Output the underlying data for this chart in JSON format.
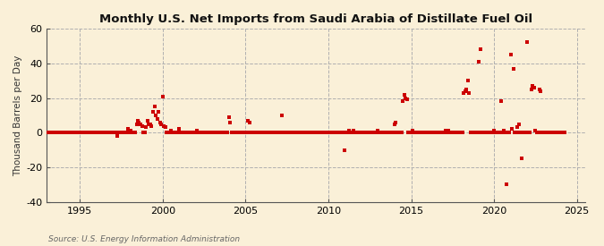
{
  "title": "Monthly U.S. Net Imports from Saudi Arabia of Distillate Fuel Oil",
  "ylabel": "Thousand Barrels per Day",
  "source_text": "Source: U.S. Energy Information Administration",
  "background_color": "#faf0d8",
  "plot_bg_color": "#faf0d8",
  "marker_color": "#cc0000",
  "marker_size": 5,
  "xlim": [
    1993.0,
    2025.5
  ],
  "ylim": [
    -40,
    60
  ],
  "yticks": [
    -40,
    -20,
    0,
    20,
    40,
    60
  ],
  "xticks": [
    1995,
    2000,
    2005,
    2010,
    2015,
    2020,
    2025
  ],
  "data": [
    [
      1993.0,
      0
    ],
    [
      1993.08,
      0
    ],
    [
      1993.17,
      0
    ],
    [
      1993.25,
      0
    ],
    [
      1993.33,
      0
    ],
    [
      1993.42,
      0
    ],
    [
      1993.5,
      0
    ],
    [
      1993.58,
      0
    ],
    [
      1993.67,
      0
    ],
    [
      1993.75,
      0
    ],
    [
      1993.83,
      0
    ],
    [
      1993.92,
      0
    ],
    [
      1994.0,
      0
    ],
    [
      1994.08,
      0
    ],
    [
      1994.17,
      0
    ],
    [
      1994.25,
      0
    ],
    [
      1994.33,
      0
    ],
    [
      1994.42,
      0
    ],
    [
      1994.5,
      0
    ],
    [
      1994.58,
      0
    ],
    [
      1994.67,
      0
    ],
    [
      1994.75,
      0
    ],
    [
      1994.83,
      0
    ],
    [
      1994.92,
      0
    ],
    [
      1995.0,
      0
    ],
    [
      1995.08,
      0
    ],
    [
      1995.17,
      0
    ],
    [
      1995.25,
      0
    ],
    [
      1995.33,
      0
    ],
    [
      1995.42,
      0
    ],
    [
      1995.5,
      0
    ],
    [
      1995.58,
      0
    ],
    [
      1995.67,
      0
    ],
    [
      1995.75,
      0
    ],
    [
      1995.83,
      0
    ],
    [
      1995.92,
      0
    ],
    [
      1996.0,
      0
    ],
    [
      1996.08,
      0
    ],
    [
      1996.17,
      0
    ],
    [
      1996.25,
      0
    ],
    [
      1996.33,
      0
    ],
    [
      1996.42,
      0
    ],
    [
      1996.5,
      0
    ],
    [
      1996.58,
      0
    ],
    [
      1996.67,
      0
    ],
    [
      1996.75,
      0
    ],
    [
      1996.83,
      0
    ],
    [
      1996.92,
      0
    ],
    [
      1997.0,
      0
    ],
    [
      1997.08,
      0
    ],
    [
      1997.17,
      0
    ],
    [
      1997.25,
      -2
    ],
    [
      1997.33,
      0
    ],
    [
      1997.42,
      0
    ],
    [
      1997.5,
      0
    ],
    [
      1997.58,
      0
    ],
    [
      1997.67,
      0
    ],
    [
      1997.75,
      0
    ],
    [
      1997.83,
      0
    ],
    [
      1997.92,
      2
    ],
    [
      1998.0,
      0
    ],
    [
      1998.08,
      1
    ],
    [
      1998.17,
      0
    ],
    [
      1998.25,
      0
    ],
    [
      1998.33,
      0
    ],
    [
      1998.42,
      5
    ],
    [
      1998.5,
      7
    ],
    [
      1998.58,
      6
    ],
    [
      1998.67,
      5
    ],
    [
      1998.75,
      4
    ],
    [
      1998.83,
      0
    ],
    [
      1998.92,
      0
    ],
    [
      1999.0,
      3
    ],
    [
      1999.08,
      7
    ],
    [
      1999.17,
      5
    ],
    [
      1999.25,
      5
    ],
    [
      1999.33,
      4
    ],
    [
      1999.42,
      12
    ],
    [
      1999.5,
      15
    ],
    [
      1999.58,
      10
    ],
    [
      1999.67,
      8
    ],
    [
      1999.75,
      12
    ],
    [
      1999.83,
      6
    ],
    [
      1999.92,
      5
    ],
    [
      2000.0,
      21
    ],
    [
      2000.08,
      4
    ],
    [
      2000.17,
      3
    ],
    [
      2000.25,
      0
    ],
    [
      2000.33,
      0
    ],
    [
      2000.42,
      0
    ],
    [
      2000.5,
      1
    ],
    [
      2000.58,
      0
    ],
    [
      2000.67,
      0
    ],
    [
      2000.75,
      0
    ],
    [
      2000.83,
      0
    ],
    [
      2000.92,
      0
    ],
    [
      2001.0,
      2
    ],
    [
      2001.08,
      0
    ],
    [
      2001.17,
      0
    ],
    [
      2001.25,
      0
    ],
    [
      2001.33,
      0
    ],
    [
      2001.42,
      0
    ],
    [
      2001.5,
      0
    ],
    [
      2001.58,
      0
    ],
    [
      2001.67,
      0
    ],
    [
      2001.75,
      0
    ],
    [
      2001.83,
      0
    ],
    [
      2001.92,
      0
    ],
    [
      2002.0,
      0
    ],
    [
      2002.08,
      1
    ],
    [
      2002.17,
      0
    ],
    [
      2002.25,
      0
    ],
    [
      2002.33,
      0
    ],
    [
      2002.42,
      0
    ],
    [
      2002.5,
      0
    ],
    [
      2002.58,
      0
    ],
    [
      2002.67,
      0
    ],
    [
      2002.75,
      0
    ],
    [
      2002.83,
      0
    ],
    [
      2002.92,
      0
    ],
    [
      2003.0,
      0
    ],
    [
      2003.08,
      0
    ],
    [
      2003.17,
      0
    ],
    [
      2003.25,
      0
    ],
    [
      2003.33,
      0
    ],
    [
      2003.42,
      0
    ],
    [
      2003.5,
      0
    ],
    [
      2003.58,
      0
    ],
    [
      2003.67,
      0
    ],
    [
      2003.75,
      0
    ],
    [
      2003.83,
      0
    ],
    [
      2003.92,
      0
    ],
    [
      2004.0,
      9
    ],
    [
      2004.08,
      6
    ],
    [
      2004.17,
      0
    ],
    [
      2004.25,
      0
    ],
    [
      2004.33,
      0
    ],
    [
      2004.42,
      0
    ],
    [
      2004.5,
      0
    ],
    [
      2004.58,
      0
    ],
    [
      2004.67,
      0
    ],
    [
      2004.75,
      0
    ],
    [
      2004.83,
      0
    ],
    [
      2004.92,
      0
    ],
    [
      2005.0,
      0
    ],
    [
      2005.08,
      0
    ],
    [
      2005.17,
      7
    ],
    [
      2005.25,
      6
    ],
    [
      2005.33,
      0
    ],
    [
      2005.42,
      0
    ],
    [
      2005.5,
      0
    ],
    [
      2005.58,
      0
    ],
    [
      2005.67,
      0
    ],
    [
      2005.75,
      0
    ],
    [
      2005.83,
      0
    ],
    [
      2005.92,
      0
    ],
    [
      2006.0,
      0
    ],
    [
      2006.08,
      0
    ],
    [
      2006.17,
      0
    ],
    [
      2006.25,
      0
    ],
    [
      2006.33,
      0
    ],
    [
      2006.42,
      0
    ],
    [
      2006.5,
      0
    ],
    [
      2006.58,
      0
    ],
    [
      2006.67,
      0
    ],
    [
      2006.75,
      0
    ],
    [
      2006.83,
      0
    ],
    [
      2006.92,
      0
    ],
    [
      2007.0,
      0
    ],
    [
      2007.08,
      0
    ],
    [
      2007.17,
      10
    ],
    [
      2007.25,
      0
    ],
    [
      2007.33,
      0
    ],
    [
      2007.42,
      0
    ],
    [
      2007.5,
      0
    ],
    [
      2007.58,
      0
    ],
    [
      2007.67,
      0
    ],
    [
      2007.75,
      0
    ],
    [
      2007.83,
      0
    ],
    [
      2007.92,
      0
    ],
    [
      2008.0,
      0
    ],
    [
      2008.08,
      0
    ],
    [
      2008.17,
      0
    ],
    [
      2008.25,
      0
    ],
    [
      2008.33,
      0
    ],
    [
      2008.42,
      0
    ],
    [
      2008.5,
      0
    ],
    [
      2008.58,
      0
    ],
    [
      2008.67,
      0
    ],
    [
      2008.75,
      0
    ],
    [
      2008.83,
      0
    ],
    [
      2008.92,
      0
    ],
    [
      2009.0,
      0
    ],
    [
      2009.08,
      0
    ],
    [
      2009.17,
      0
    ],
    [
      2009.25,
      0
    ],
    [
      2009.33,
      0
    ],
    [
      2009.42,
      0
    ],
    [
      2009.5,
      0
    ],
    [
      2009.58,
      0
    ],
    [
      2009.67,
      0
    ],
    [
      2009.75,
      0
    ],
    [
      2009.83,
      0
    ],
    [
      2009.92,
      0
    ],
    [
      2010.0,
      0
    ],
    [
      2010.08,
      0
    ],
    [
      2010.17,
      0
    ],
    [
      2010.25,
      0
    ],
    [
      2010.33,
      0
    ],
    [
      2010.42,
      0
    ],
    [
      2010.5,
      0
    ],
    [
      2010.58,
      0
    ],
    [
      2010.67,
      0
    ],
    [
      2010.75,
      0
    ],
    [
      2010.83,
      0
    ],
    [
      2010.92,
      0
    ],
    [
      2011.0,
      -10
    ],
    [
      2011.08,
      0
    ],
    [
      2011.17,
      0
    ],
    [
      2011.25,
      1
    ],
    [
      2011.33,
      0
    ],
    [
      2011.42,
      0
    ],
    [
      2011.5,
      1
    ],
    [
      2011.58,
      0
    ],
    [
      2011.67,
      0
    ],
    [
      2011.75,
      0
    ],
    [
      2011.83,
      0
    ],
    [
      2011.92,
      0
    ],
    [
      2012.0,
      0
    ],
    [
      2012.08,
      0
    ],
    [
      2012.17,
      0
    ],
    [
      2012.25,
      0
    ],
    [
      2012.33,
      0
    ],
    [
      2012.42,
      0
    ],
    [
      2012.5,
      0
    ],
    [
      2012.58,
      0
    ],
    [
      2012.67,
      0
    ],
    [
      2012.75,
      0
    ],
    [
      2012.83,
      0
    ],
    [
      2012.92,
      0
    ],
    [
      2013.0,
      1
    ],
    [
      2013.08,
      0
    ],
    [
      2013.17,
      0
    ],
    [
      2013.25,
      0
    ],
    [
      2013.33,
      0
    ],
    [
      2013.42,
      0
    ],
    [
      2013.5,
      0
    ],
    [
      2013.58,
      0
    ],
    [
      2013.67,
      0
    ],
    [
      2013.75,
      0
    ],
    [
      2013.83,
      0
    ],
    [
      2013.92,
      0
    ],
    [
      2014.0,
      5
    ],
    [
      2014.08,
      6
    ],
    [
      2014.17,
      0
    ],
    [
      2014.25,
      0
    ],
    [
      2014.33,
      0
    ],
    [
      2014.42,
      0
    ],
    [
      2014.5,
      18
    ],
    [
      2014.58,
      22
    ],
    [
      2014.67,
      20
    ],
    [
      2014.75,
      19
    ],
    [
      2014.83,
      0
    ],
    [
      2014.92,
      0
    ],
    [
      2015.0,
      0
    ],
    [
      2015.08,
      1
    ],
    [
      2015.17,
      0
    ],
    [
      2015.25,
      0
    ],
    [
      2015.33,
      0
    ],
    [
      2015.42,
      0
    ],
    [
      2015.5,
      0
    ],
    [
      2015.58,
      0
    ],
    [
      2015.67,
      0
    ],
    [
      2015.75,
      0
    ],
    [
      2015.83,
      0
    ],
    [
      2015.92,
      0
    ],
    [
      2016.0,
      0
    ],
    [
      2016.08,
      0
    ],
    [
      2016.17,
      0
    ],
    [
      2016.25,
      0
    ],
    [
      2016.33,
      0
    ],
    [
      2016.42,
      0
    ],
    [
      2016.5,
      0
    ],
    [
      2016.58,
      0
    ],
    [
      2016.67,
      0
    ],
    [
      2016.75,
      0
    ],
    [
      2016.83,
      0
    ],
    [
      2016.92,
      0
    ],
    [
      2017.0,
      0
    ],
    [
      2017.08,
      1
    ],
    [
      2017.17,
      0
    ],
    [
      2017.25,
      1
    ],
    [
      2017.33,
      0
    ],
    [
      2017.42,
      0
    ],
    [
      2017.5,
      0
    ],
    [
      2017.58,
      0
    ],
    [
      2017.67,
      0
    ],
    [
      2017.75,
      0
    ],
    [
      2017.83,
      0
    ],
    [
      2017.92,
      0
    ],
    [
      2018.0,
      0
    ],
    [
      2018.08,
      0
    ],
    [
      2018.17,
      23
    ],
    [
      2018.25,
      24
    ],
    [
      2018.33,
      25
    ],
    [
      2018.42,
      30
    ],
    [
      2018.5,
      23
    ],
    [
      2018.58,
      0
    ],
    [
      2018.67,
      0
    ],
    [
      2018.75,
      0
    ],
    [
      2018.83,
      0
    ],
    [
      2018.92,
      0
    ],
    [
      2019.0,
      0
    ],
    [
      2019.08,
      41
    ],
    [
      2019.17,
      48
    ],
    [
      2019.25,
      0
    ],
    [
      2019.33,
      0
    ],
    [
      2019.42,
      0
    ],
    [
      2019.5,
      0
    ],
    [
      2019.58,
      0
    ],
    [
      2019.67,
      0
    ],
    [
      2019.75,
      0
    ],
    [
      2019.83,
      0
    ],
    [
      2019.92,
      0
    ],
    [
      2020.0,
      1
    ],
    [
      2020.08,
      0
    ],
    [
      2020.17,
      0
    ],
    [
      2020.25,
      0
    ],
    [
      2020.33,
      0
    ],
    [
      2020.42,
      18
    ],
    [
      2020.5,
      0
    ],
    [
      2020.58,
      1
    ],
    [
      2020.67,
      0
    ],
    [
      2020.75,
      -30
    ],
    [
      2020.83,
      0
    ],
    [
      2020.92,
      0
    ],
    [
      2021.0,
      45
    ],
    [
      2021.08,
      2
    ],
    [
      2021.17,
      37
    ],
    [
      2021.25,
      0
    ],
    [
      2021.33,
      0
    ],
    [
      2021.42,
      3
    ],
    [
      2021.5,
      5
    ],
    [
      2021.58,
      0
    ],
    [
      2021.67,
      -15
    ],
    [
      2021.75,
      0
    ],
    [
      2021.83,
      0
    ],
    [
      2021.92,
      0
    ],
    [
      2022.0,
      52
    ],
    [
      2022.08,
      0
    ],
    [
      2022.17,
      0
    ],
    [
      2022.25,
      25
    ],
    [
      2022.33,
      27
    ],
    [
      2022.42,
      26
    ],
    [
      2022.5,
      1
    ],
    [
      2022.58,
      0
    ],
    [
      2022.67,
      0
    ],
    [
      2022.75,
      25
    ],
    [
      2022.83,
      24
    ],
    [
      2022.92,
      0
    ],
    [
      2023.0,
      0
    ],
    [
      2023.08,
      0
    ],
    [
      2023.17,
      0
    ],
    [
      2023.25,
      0
    ],
    [
      2023.33,
      0
    ],
    [
      2023.42,
      0
    ],
    [
      2023.5,
      0
    ],
    [
      2023.58,
      0
    ],
    [
      2023.67,
      0
    ],
    [
      2023.75,
      0
    ],
    [
      2023.83,
      0
    ],
    [
      2023.92,
      0
    ],
    [
      2024.0,
      0
    ],
    [
      2024.08,
      0
    ],
    [
      2024.17,
      0
    ],
    [
      2024.25,
      0
    ]
  ]
}
